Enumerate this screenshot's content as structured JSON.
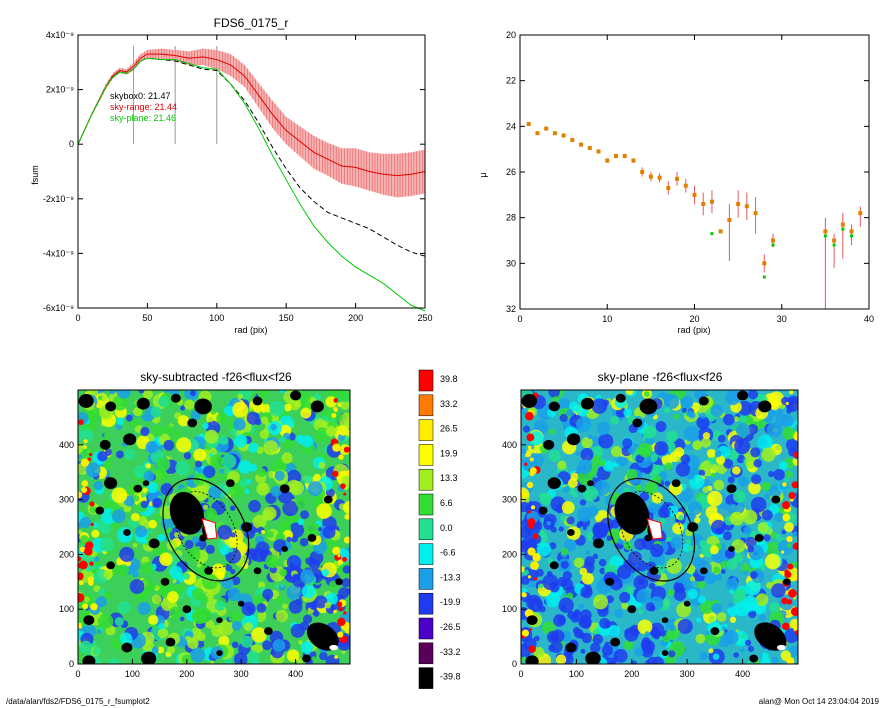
{
  "footer": {
    "left": "/data/alan/fds2/FDS6_0175_r_fsumplot2",
    "right": "alan@  Mon Oct 14 23:04:04 2019"
  },
  "chart_data": [
    {
      "type": "line",
      "title": "FDS6_0175_r",
      "xlabel": "rad (pix)",
      "ylabel": "fsum",
      "xlim": [
        0,
        250
      ],
      "ylim": [
        -6e-09,
        4e-09
      ],
      "x_ticks": [
        "0",
        "50",
        "100",
        "150",
        "200",
        "250"
      ],
      "y_ticks": [
        "-6x10⁻⁹",
        "-4x10⁻⁹",
        "-2x10⁻⁹",
        "0",
        "2x10⁻⁹",
        "4x10⁻⁹"
      ],
      "vlines": [
        40,
        70,
        100
      ],
      "legend": [
        {
          "label": "skybox0: 21.47",
          "color": "#000000"
        },
        {
          "label": "sky-range: 21.44",
          "color": "#e00000"
        },
        {
          "label": "sky-plane: 21.46",
          "color": "#00cc00"
        }
      ],
      "series": [
        {
          "color": "#000000",
          "style": "dashed",
          "x": [
            0,
            10,
            20,
            25,
            30,
            35,
            40,
            45,
            50,
            60,
            70,
            80,
            90,
            100,
            110,
            120,
            130,
            140,
            150,
            160,
            170,
            180,
            190,
            200,
            210,
            220,
            230,
            240,
            250
          ],
          "y": [
            0,
            1.1e-09,
            2.1e-09,
            2.45e-09,
            2.65e-09,
            2.6e-09,
            2.75e-09,
            3.05e-09,
            3.15e-09,
            3.1e-09,
            3.05e-09,
            2.9e-09,
            2.75e-09,
            2.7e-09,
            2.2e-09,
            1.6e-09,
            8e-10,
            -1e-10,
            -9e-10,
            -1.6e-09,
            -2.1e-09,
            -2.5e-09,
            -2.7e-09,
            -2.9e-09,
            -3.1e-09,
            -3.4e-09,
            -3.7e-09,
            -3.95e-09,
            -4.1e-09
          ]
        },
        {
          "color": "#e00000",
          "style": "solid",
          "x": [
            0,
            10,
            20,
            25,
            30,
            35,
            40,
            45,
            50,
            60,
            70,
            80,
            90,
            100,
            110,
            120,
            130,
            140,
            150,
            160,
            170,
            180,
            190,
            200,
            210,
            220,
            230,
            240,
            250
          ],
          "y": [
            0,
            1.1e-09,
            2.1e-09,
            2.5e-09,
            2.7e-09,
            2.65e-09,
            2.85e-09,
            3.15e-09,
            3.3e-09,
            3.3e-09,
            3.25e-09,
            3.15e-09,
            3.2e-09,
            3.1e-09,
            2.9e-09,
            2.5e-09,
            1.8e-09,
            1.1e-09,
            5e-10,
            1e-10,
            -3e-10,
            -5.5e-10,
            -8e-10,
            -8.5e-10,
            -1e-09,
            -1.1e-09,
            -1.15e-09,
            -1.1e-09,
            -1e-09
          ],
          "err": [
            0,
            5e-11,
            1e-10,
            1e-10,
            1e-10,
            1e-10,
            1.5e-10,
            1.5e-10,
            1.5e-10,
            2e-10,
            2e-10,
            2.5e-10,
            3e-10,
            3.5e-10,
            4e-10,
            4e-10,
            4.5e-10,
            5e-10,
            5e-10,
            5.5e-10,
            6e-10,
            6e-10,
            6.5e-10,
            7e-10,
            7e-10,
            7.5e-10,
            8e-10,
            8e-10,
            8e-10
          ]
        },
        {
          "color": "#00cc00",
          "style": "solid",
          "x": [
            0,
            10,
            20,
            25,
            30,
            35,
            40,
            45,
            50,
            60,
            70,
            80,
            90,
            100,
            110,
            120,
            130,
            140,
            150,
            160,
            170,
            180,
            190,
            200,
            210,
            220,
            230,
            240,
            250
          ],
          "y": [
            0,
            1.1e-09,
            2.1e-09,
            2.45e-09,
            2.65e-09,
            2.6e-09,
            2.75e-09,
            3.05e-09,
            3.15e-09,
            3.1e-09,
            3.1e-09,
            2.95e-09,
            2.8e-09,
            2.75e-09,
            2.2e-09,
            1.5e-09,
            6e-10,
            -4e-10,
            -1.3e-09,
            -2.2e-09,
            -3e-09,
            -3.6e-09,
            -4.1e-09,
            -4.5e-09,
            -4.8e-09,
            -5.1e-09,
            -5.5e-09,
            -5.9e-09,
            -6.1e-09
          ]
        }
      ]
    },
    {
      "type": "scatter",
      "xlabel": "rad (pix)",
      "ylabel": "μ",
      "xlim": [
        0,
        40
      ],
      "ylim": [
        32,
        20
      ],
      "x_ticks": [
        "0",
        "10",
        "20",
        "30",
        "40"
      ],
      "y_ticks": [
        "20",
        "22",
        "24",
        "26",
        "28",
        "30",
        "32"
      ],
      "series": [
        {
          "marker": "square",
          "color": "#e08000",
          "x": [
            1,
            2,
            3,
            4,
            5,
            6,
            7,
            8,
            9,
            10,
            11,
            12,
            13,
            14,
            15,
            16,
            17,
            18,
            19,
            20,
            21,
            22,
            23,
            24,
            25,
            26,
            27,
            28,
            29,
            35,
            36,
            37,
            38,
            39
          ],
          "y": [
            23.9,
            24.3,
            24.1,
            24.3,
            24.4,
            24.6,
            24.8,
            24.95,
            25.1,
            25.5,
            25.3,
            25.3,
            25.5,
            26.0,
            26.2,
            26.25,
            26.7,
            26.3,
            26.6,
            27.0,
            27.4,
            27.3,
            28.6,
            28.1,
            27.4,
            27.5,
            27.8,
            30.0,
            29.0,
            28.6,
            29.0,
            28.3,
            28.6,
            27.8
          ],
          "err_low": [
            0,
            0,
            0,
            0,
            0,
            0,
            0,
            0,
            0,
            0.1,
            0.1,
            0.1,
            0.1,
            0.2,
            0.2,
            0.2,
            0.3,
            0.3,
            0.3,
            0.4,
            0.5,
            0.5,
            0.0,
            1.8,
            0.6,
            0.6,
            0.9,
            0.4,
            0.3,
            3.5,
            1.2,
            1.5,
            0.6,
            0.6
          ],
          "err_high": [
            0,
            0,
            0,
            0,
            0,
            0,
            0,
            0,
            0,
            0.1,
            0.1,
            0.1,
            0.1,
            0.2,
            0.2,
            0.2,
            0.3,
            0.3,
            0.3,
            0.4,
            0.5,
            0.5,
            0.0,
            0.7,
            0.6,
            0.6,
            0.7,
            0.4,
            0.3,
            0.6,
            0.3,
            0.5,
            0.3,
            0.3
          ]
        },
        {
          "marker": "square",
          "color": "#00cc00",
          "x": [
            22,
            28,
            29,
            35,
            36,
            37,
            38
          ],
          "y": [
            28.7,
            30.6,
            29.2,
            28.8,
            29.2,
            28.5,
            28.8
          ]
        }
      ]
    },
    {
      "type": "heatmap",
      "title": "sky-subtracted -f26<flux<f26",
      "xlim": [
        0,
        500
      ],
      "ylim": [
        0,
        500
      ],
      "x_ticks": [
        "0",
        "100",
        "200",
        "300",
        "400"
      ],
      "y_ticks": [
        "0",
        "100",
        "200",
        "300",
        "400"
      ]
    },
    {
      "type": "heatmap",
      "title": "sky-plane -f26<flux<f26",
      "xlim": [
        0,
        500
      ],
      "ylim": [
        0,
        500
      ],
      "x_ticks": [
        "0",
        "100",
        "200",
        "300",
        "400"
      ],
      "y_ticks": [
        "0",
        "100",
        "200",
        "300",
        "400"
      ]
    },
    {
      "type": "table",
      "colorbar": [
        {
          "label": "39.8",
          "color": "#ff0000"
        },
        {
          "label": "33.2",
          "color": "#ff7a00"
        },
        {
          "label": "26.5",
          "color": "#ffee00"
        },
        {
          "label": "19.9",
          "color": "#ffff00"
        },
        {
          "label": "13.3",
          "color": "#a0ee20"
        },
        {
          "label": "6.6",
          "color": "#33dd33"
        },
        {
          "label": "0.0",
          "color": "#22e090"
        },
        {
          "label": "-6.6",
          "color": "#00eeee"
        },
        {
          "label": "-13.3",
          "color": "#1a9fe8"
        },
        {
          "label": "-19.9",
          "color": "#1e3cf0"
        },
        {
          "label": "-26.5",
          "color": "#4b00c8"
        },
        {
          "label": "-33.2",
          "color": "#5a005a"
        },
        {
          "label": "-39.8",
          "color": "#000000"
        }
      ]
    }
  ]
}
